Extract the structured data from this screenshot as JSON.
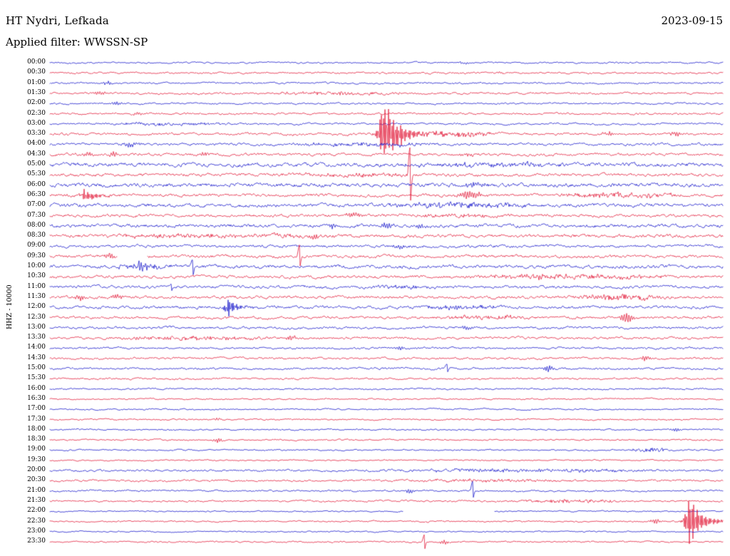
{
  "header": {
    "station_title": "HT Nydri, Lefkada",
    "date": "2023-09-15",
    "filter_label": "Applied filter: WWSSN-SP"
  },
  "axis": {
    "y_label": "HHZ - 10000"
  },
  "chart_data": {
    "type": "line",
    "variant": "helicorder-seismogram",
    "station": "HT Nydri, Lefkada",
    "date": "2023-09-15",
    "filter": "WWSSN-SP",
    "channel_scale_label": "HHZ - 10000",
    "minutes_per_row": 30,
    "row_count": 48,
    "trace_colors": {
      "even_rows": "#0e0ec8",
      "odd_rows": "#e01030"
    },
    "text_color": "#000000",
    "background": "#ffffff",
    "rows": [
      {
        "t": "00:00",
        "noise": 1.1
      },
      {
        "t": "00:30",
        "noise": 1.2
      },
      {
        "t": "01:00",
        "noise": 1.2
      },
      {
        "t": "01:30",
        "noise": 1.3
      },
      {
        "t": "02:00",
        "noise": 1.2
      },
      {
        "t": "02:30",
        "noise": 1.3
      },
      {
        "t": "03:00",
        "noise": 1.3
      },
      {
        "t": "03:30",
        "noise": 1.6
      },
      {
        "t": "04:00",
        "noise": 1.7
      },
      {
        "t": "04:30",
        "noise": 1.8
      },
      {
        "t": "05:00",
        "noise": 2.6
      },
      {
        "t": "05:30",
        "noise": 2.0
      },
      {
        "t": "06:00",
        "noise": 2.6
      },
      {
        "t": "06:30",
        "noise": 2.0
      },
      {
        "t": "07:00",
        "noise": 2.3
      },
      {
        "t": "07:30",
        "noise": 1.9
      },
      {
        "t": "08:00",
        "noise": 2.2
      },
      {
        "t": "08:30",
        "noise": 2.1
      },
      {
        "t": "09:00",
        "noise": 1.9
      },
      {
        "t": "09:30",
        "noise": 1.9
      },
      {
        "t": "10:00",
        "noise": 2.2
      },
      {
        "t": "10:30",
        "noise": 1.9
      },
      {
        "t": "11:00",
        "noise": 1.9
      },
      {
        "t": "11:30",
        "noise": 1.9
      },
      {
        "t": "12:00",
        "noise": 1.9
      },
      {
        "t": "12:30",
        "noise": 1.7
      },
      {
        "t": "13:00",
        "noise": 1.6
      },
      {
        "t": "13:30",
        "noise": 1.6
      },
      {
        "t": "14:00",
        "noise": 1.4
      },
      {
        "t": "14:30",
        "noise": 1.4
      },
      {
        "t": "15:00",
        "noise": 1.4
      },
      {
        "t": "15:30",
        "noise": 1.2
      },
      {
        "t": "16:00",
        "noise": 1.1
      },
      {
        "t": "16:30",
        "noise": 1.0
      },
      {
        "t": "17:00",
        "noise": 1.0
      },
      {
        "t": "17:30",
        "noise": 1.0
      },
      {
        "t": "18:00",
        "noise": 1.0
      },
      {
        "t": "18:30",
        "noise": 1.0
      },
      {
        "t": "19:00",
        "noise": 1.0
      },
      {
        "t": "19:30",
        "noise": 0.9
      },
      {
        "t": "20:00",
        "noise": 1.4
      },
      {
        "t": "20:30",
        "noise": 1.3
      },
      {
        "t": "21:00",
        "noise": 1.2
      },
      {
        "t": "21:30",
        "noise": 1.2
      },
      {
        "t": "22:00",
        "noise": 0.9
      },
      {
        "t": "22:30",
        "noise": 1.0
      },
      {
        "t": "23:00",
        "noise": 0.9
      },
      {
        "t": "23:30",
        "noise": 1.0
      }
    ],
    "events": [
      {
        "row": 0,
        "kind": "burst",
        "x": 0.615,
        "amp": 1.5,
        "sigma": 4
      },
      {
        "row": 1,
        "kind": "burst",
        "x": 0.67,
        "amp": 1.5,
        "sigma": 4
      },
      {
        "row": 2,
        "kind": "burst",
        "x": 0.085,
        "amp": 1.8,
        "sigma": 5
      },
      {
        "row": 3,
        "kind": "burst",
        "x": 0.075,
        "amp": 2.0,
        "sigma": 6
      },
      {
        "row": 3,
        "kind": "band",
        "x0": 0.3,
        "x1": 0.55,
        "amp": 1.2
      },
      {
        "row": 4,
        "kind": "burst",
        "x": 0.1,
        "amp": 1.8,
        "sigma": 5
      },
      {
        "row": 5,
        "kind": "burst",
        "x": 0.13,
        "amp": 2.0,
        "sigma": 5
      },
      {
        "row": 6,
        "kind": "band",
        "x0": 0.05,
        "x1": 0.3,
        "amp": 1.0
      },
      {
        "row": 7,
        "kind": "quake",
        "x": 0.498,
        "amp": 46,
        "rise": 6,
        "decay": 20
      },
      {
        "row": 7,
        "kind": "band",
        "x0": 0.52,
        "x1": 0.68,
        "amp": 2.5
      },
      {
        "row": 7,
        "kind": "burst",
        "x": 0.83,
        "amp": 2.5,
        "sigma": 8
      },
      {
        "row": 7,
        "kind": "burst",
        "x": 0.93,
        "amp": 2.5,
        "sigma": 6
      },
      {
        "row": 8,
        "kind": "burst",
        "x": 0.12,
        "amp": 2.5,
        "sigma": 8
      },
      {
        "row": 8,
        "kind": "band",
        "x0": 0.35,
        "x1": 0.6,
        "amp": 1.3
      },
      {
        "row": 9,
        "kind": "burst",
        "x": 0.055,
        "amp": 3.0,
        "sigma": 5
      },
      {
        "row": 9,
        "kind": "burst",
        "x": 0.095,
        "amp": 3.0,
        "sigma": 4
      },
      {
        "row": 9,
        "kind": "burst",
        "x": 0.23,
        "amp": 2.5,
        "sigma": 5
      },
      {
        "row": 9,
        "kind": "burst",
        "x": 0.62,
        "amp": 2.0,
        "sigma": 6
      },
      {
        "row": 10,
        "kind": "band",
        "x0": 0.5,
        "x1": 0.8,
        "amp": 1.5
      },
      {
        "row": 11,
        "kind": "spike",
        "x": 0.535,
        "amp": 38,
        "sigma": 1.6
      },
      {
        "row": 11,
        "kind": "band",
        "x0": 0.3,
        "x1": 0.6,
        "amp": 1.0
      },
      {
        "row": 12,
        "kind": "burst",
        "x": 0.63,
        "amp": 3.0,
        "sigma": 10
      },
      {
        "row": 13,
        "kind": "quake",
        "x": 0.053,
        "amp": 9,
        "rise": 4,
        "decay": 14
      },
      {
        "row": 13,
        "kind": "burst",
        "x": 0.625,
        "amp": 5.0,
        "sigma": 12
      },
      {
        "row": 13,
        "kind": "band",
        "x0": 0.75,
        "x1": 0.95,
        "amp": 2.0
      },
      {
        "row": 13,
        "kind": "burst",
        "x": 0.855,
        "amp": 3.0,
        "sigma": 8
      },
      {
        "row": 14,
        "kind": "band",
        "x0": 0.48,
        "x1": 0.73,
        "amp": 2.2
      },
      {
        "row": 15,
        "kind": "burst",
        "x": 0.45,
        "amp": 2.5,
        "sigma": 8
      },
      {
        "row": 15,
        "kind": "band",
        "x0": 0.5,
        "x1": 0.7,
        "amp": 1.2
      },
      {
        "row": 16,
        "kind": "burst",
        "x": 0.42,
        "amp": 3.5,
        "sigma": 5
      },
      {
        "row": 16,
        "kind": "burst",
        "x": 0.5,
        "amp": 3.5,
        "sigma": 6
      },
      {
        "row": 16,
        "kind": "burst",
        "x": 0.55,
        "amp": 3.0,
        "sigma": 5
      },
      {
        "row": 17,
        "kind": "band",
        "x0": 0.05,
        "x1": 0.45,
        "amp": 1.5
      },
      {
        "row": 17,
        "kind": "burst",
        "x": 0.39,
        "amp": 3.0,
        "sigma": 5
      },
      {
        "row": 18,
        "kind": "burst",
        "x": 0.52,
        "amp": 2.5,
        "sigma": 6
      },
      {
        "row": 19,
        "kind": "spike",
        "x": 0.371,
        "amp": 15,
        "sigma": 2.2
      },
      {
        "row": 19,
        "kind": "burst",
        "x": 0.09,
        "amp": 3.0,
        "sigma": 6
      },
      {
        "row": 20,
        "kind": "band",
        "x0": 0.09,
        "x1": 0.19,
        "amp": 2.5
      },
      {
        "row": 20,
        "kind": "burst",
        "x": 0.135,
        "amp": 3.5,
        "sigma": 8
      },
      {
        "row": 20,
        "kind": "spike",
        "x": 0.212,
        "amp": 11,
        "sigma": 1.8
      },
      {
        "row": 21,
        "kind": "band",
        "x0": 0.58,
        "x1": 0.95,
        "amp": 1.6
      },
      {
        "row": 21,
        "kind": "burst",
        "x": 0.73,
        "amp": 2.5,
        "sigma": 7
      },
      {
        "row": 22,
        "kind": "spike",
        "x": 0.18,
        "amp": 5,
        "sigma": 2
      },
      {
        "row": 22,
        "kind": "band",
        "x0": 0.45,
        "x1": 0.6,
        "amp": 1.2
      },
      {
        "row": 23,
        "kind": "burst",
        "x": 0.045,
        "amp": 3.5,
        "sigma": 5
      },
      {
        "row": 23,
        "kind": "burst",
        "x": 0.1,
        "amp": 3.0,
        "sigma": 5
      },
      {
        "row": 23,
        "kind": "band",
        "x0": 0.76,
        "x1": 0.93,
        "amp": 2.2
      },
      {
        "row": 24,
        "kind": "quake",
        "x": 0.265,
        "amp": 13,
        "rise": 4,
        "decay": 12
      },
      {
        "row": 24,
        "kind": "band",
        "x0": 0.54,
        "x1": 0.68,
        "amp": 1.8
      },
      {
        "row": 25,
        "kind": "burst",
        "x": 0.858,
        "amp": 6.0,
        "sigma": 7
      },
      {
        "row": 25,
        "kind": "band",
        "x0": 0.55,
        "x1": 0.75,
        "amp": 1.3
      },
      {
        "row": 26,
        "kind": "burst",
        "x": 0.62,
        "amp": 2.0,
        "sigma": 6
      },
      {
        "row": 27,
        "kind": "band",
        "x0": 0.08,
        "x1": 0.35,
        "amp": 1.4
      },
      {
        "row": 27,
        "kind": "burst",
        "x": 0.36,
        "amp": 3.0,
        "sigma": 5
      },
      {
        "row": 28,
        "kind": "burst",
        "x": 0.52,
        "amp": 2.0,
        "sigma": 5
      },
      {
        "row": 29,
        "kind": "burst",
        "x": 0.885,
        "amp": 3.0,
        "sigma": 5
      },
      {
        "row": 30,
        "kind": "spike",
        "x": 0.59,
        "amp": 6,
        "sigma": 1.8
      },
      {
        "row": 30,
        "kind": "burst",
        "x": 0.74,
        "amp": 4.0,
        "sigma": 5
      },
      {
        "row": 35,
        "kind": "burst",
        "x": 0.25,
        "amp": 1.5,
        "sigma": 5
      },
      {
        "row": 36,
        "kind": "burst",
        "x": 0.93,
        "amp": 2.5,
        "sigma": 5
      },
      {
        "row": 37,
        "kind": "burst",
        "x": 0.25,
        "amp": 2.5,
        "sigma": 5
      },
      {
        "row": 38,
        "kind": "band",
        "x0": 0.85,
        "x1": 0.93,
        "amp": 1.8
      },
      {
        "row": 40,
        "kind": "band",
        "x0": 0.45,
        "x1": 0.95,
        "amp": 1.2
      },
      {
        "row": 41,
        "kind": "band",
        "x0": 0.5,
        "x1": 0.8,
        "amp": 1.0
      },
      {
        "row": 42,
        "kind": "burst",
        "x": 0.535,
        "amp": 3.5,
        "sigma": 4
      },
      {
        "row": 42,
        "kind": "spike",
        "x": 0.628,
        "amp": 12,
        "sigma": 1.7
      },
      {
        "row": 43,
        "kind": "band",
        "x0": 0.68,
        "x1": 0.86,
        "amp": 1.5
      },
      {
        "row": 45,
        "kind": "burst",
        "x": 0.9,
        "amp": 3.0,
        "sigma": 5
      },
      {
        "row": 45,
        "kind": "quake",
        "x": 0.951,
        "amp": 36,
        "rise": 5,
        "decay": 16
      },
      {
        "row": 47,
        "kind": "spike",
        "x": 0.556,
        "amp": 10,
        "sigma": 2
      },
      {
        "row": 47,
        "kind": "burst",
        "x": 0.585,
        "amp": 3.0,
        "sigma": 4
      }
    ],
    "gaps": [
      {
        "row": 19,
        "x0": 0.1,
        "x1": 0.145
      },
      {
        "row": 44,
        "x0": 0.525,
        "x1": 0.66
      }
    ]
  }
}
